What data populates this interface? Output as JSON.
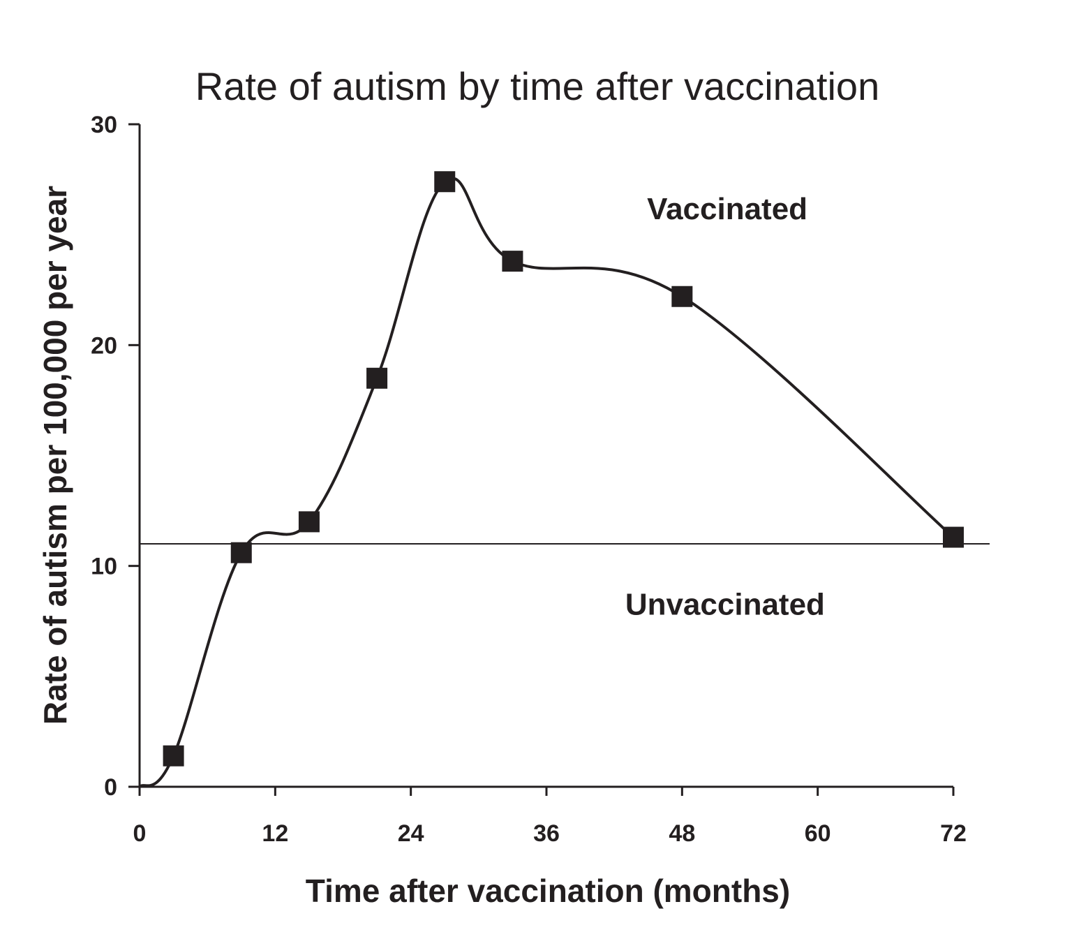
{
  "chart_data": {
    "type": "line",
    "title": "Rate of autism by time after vaccination",
    "xlabel": "Time after vaccination (months)",
    "ylabel": "Rate of autism per 100,000 per year",
    "xlim": [
      0,
      72
    ],
    "ylim": [
      0,
      30
    ],
    "xticks": [
      0,
      12,
      24,
      36,
      48,
      60,
      72
    ],
    "yticks": [
      0,
      10,
      20,
      30
    ],
    "grid": false,
    "series": [
      {
        "marker": "square",
        "color": "#231f20",
        "x": [
          0,
          3,
          9,
          15,
          21,
          27,
          33,
          48,
          72
        ],
        "y": [
          0,
          1.4,
          10.6,
          12.0,
          18.5,
          27.4,
          23.8,
          22.2,
          11.3
        ]
      }
    ],
    "reference_line": {
      "y": 11.0
    },
    "annotations": [
      {
        "text": "Vaccinated",
        "x": 52,
        "y": 25.7
      },
      {
        "text": "Unvaccinated",
        "x": 51.8,
        "y": 7.8
      }
    ]
  }
}
